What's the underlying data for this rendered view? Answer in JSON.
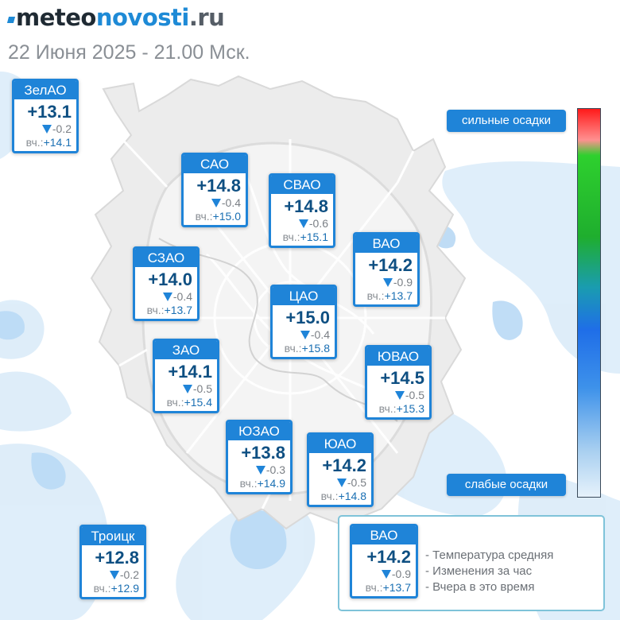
{
  "header": {
    "logo_part1": "meteo",
    "logo_part2": "novosti",
    "logo_part3": ".ru",
    "subtitle": "22 Июня 2025 - 21.00 Мск."
  },
  "yesterday_prefix": "вч.:",
  "stations": [
    {
      "name": "ЗелАО",
      "temp": "+13.1",
      "change": "-0.2",
      "yesterday": "+14.1"
    },
    {
      "name": "САО",
      "temp": "+14.8",
      "change": "-0.4",
      "yesterday": "+15.0"
    },
    {
      "name": "СВАО",
      "temp": "+14.8",
      "change": "-0.6",
      "yesterday": "+15.1"
    },
    {
      "name": "ВАО",
      "temp": "+14.2",
      "change": "-0.9",
      "yesterday": "+13.7"
    },
    {
      "name": "СЗАО",
      "temp": "+14.0",
      "change": "-0.4",
      "yesterday": "+13.7"
    },
    {
      "name": "ЦАО",
      "temp": "+15.0",
      "change": "-0.4",
      "yesterday": "+15.8"
    },
    {
      "name": "ЗАО",
      "temp": "+14.1",
      "change": "-0.5",
      "yesterday": "+15.4"
    },
    {
      "name": "ЮВАО",
      "temp": "+14.5",
      "change": "-0.5",
      "yesterday": "+15.3"
    },
    {
      "name": "ЮЗАО",
      "temp": "+13.8",
      "change": "-0.3",
      "yesterday": "+14.9"
    },
    {
      "name": "ЮАО",
      "temp": "+14.2",
      "change": "-0.5",
      "yesterday": "+14.8"
    },
    {
      "name": "Троицк",
      "temp": "+12.8",
      "change": "-0.2",
      "yesterday": "+12.9"
    }
  ],
  "scale": {
    "top_label": "сильные осадки",
    "bottom_label": "слабые осадки",
    "colors": [
      "#ff1a1a",
      "#2ed02e",
      "#1f6ee8",
      "#e6f2fb"
    ]
  },
  "legend": {
    "example": {
      "name": "ВАО",
      "temp": "+14.2",
      "change": "-0.9",
      "yesterday": "+13.7"
    },
    "lines": [
      "- Температура средняя",
      "- Изменения за час",
      "- Вчера в это время"
    ]
  },
  "icons": {
    "change": "down-triangle-icon",
    "logo_mark": "logo-mark-icon"
  }
}
